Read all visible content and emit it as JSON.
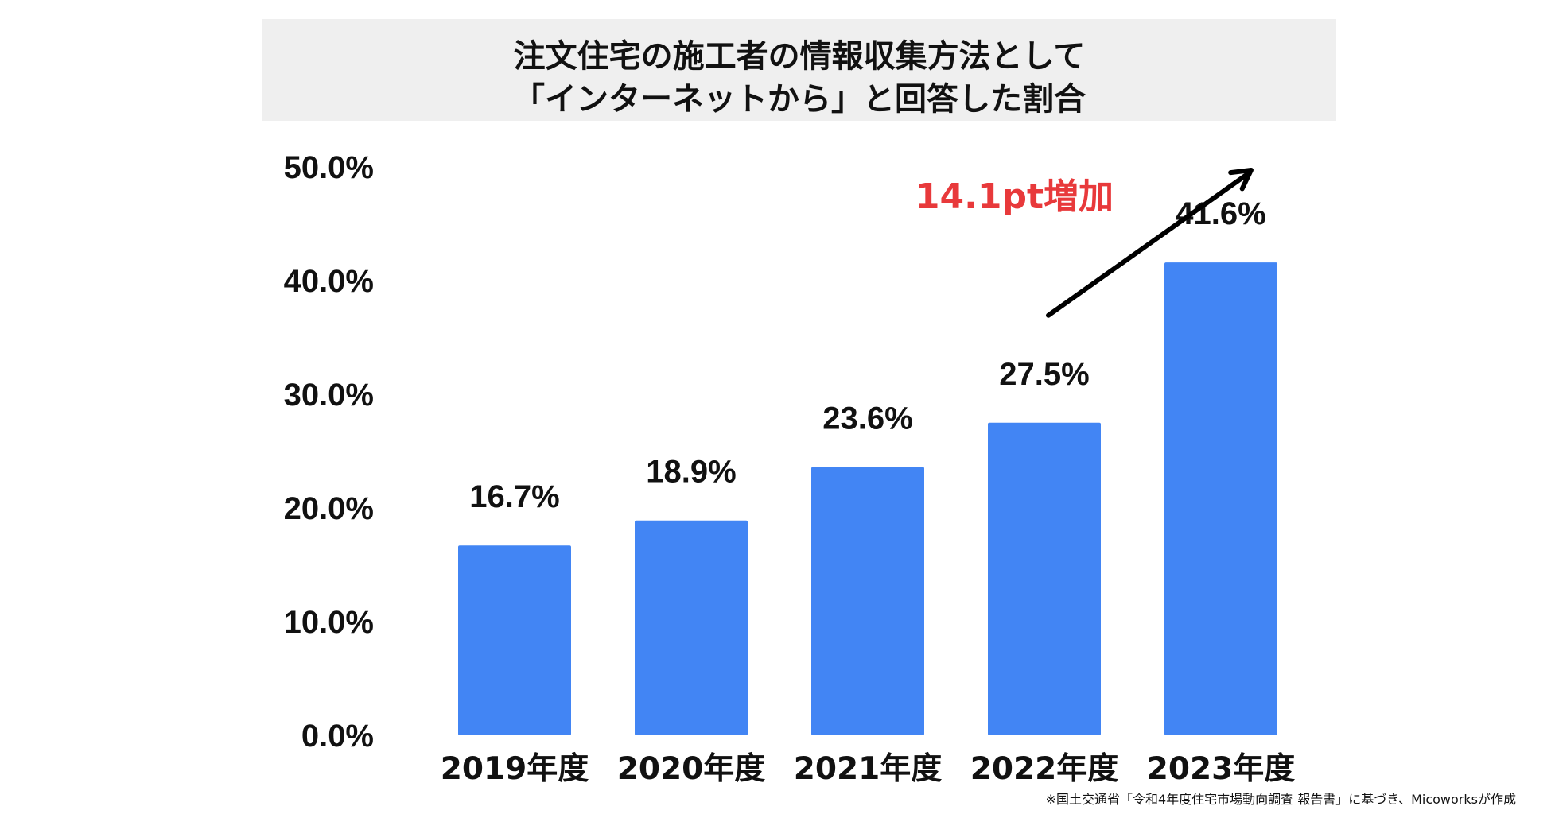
{
  "chart_data": {
    "type": "bar",
    "title": [
      "注文住宅の施工者の情報収集方法として",
      "「インターネットから」と回答した割合"
    ],
    "categories": [
      "2019年度",
      "2020年度",
      "2021年度",
      "2022年度",
      "2023年度"
    ],
    "values": [
      16.7,
      18.9,
      23.6,
      27.5,
      41.6
    ],
    "data_labels": [
      "16.7%",
      "18.9%",
      "23.6%",
      "27.5%",
      "41.6%"
    ],
    "ylim": [
      0,
      50
    ],
    "yticks": [
      0,
      10,
      20,
      30,
      40,
      50
    ],
    "ytick_labels": [
      "0.0%",
      "10.0%",
      "20.0%",
      "30.0%",
      "40.0%",
      "50.0%"
    ],
    "grid": false,
    "bar_color": "#4285f4",
    "annotation": {
      "text": "14.1pt増加",
      "color": "#e8393b",
      "arrow": "up-right",
      "arrow_color": "#000000"
    }
  },
  "source_note": "※国土交通省「令和4年度住宅市場動向調査 報告書」に基づき、Micoworksが作成"
}
